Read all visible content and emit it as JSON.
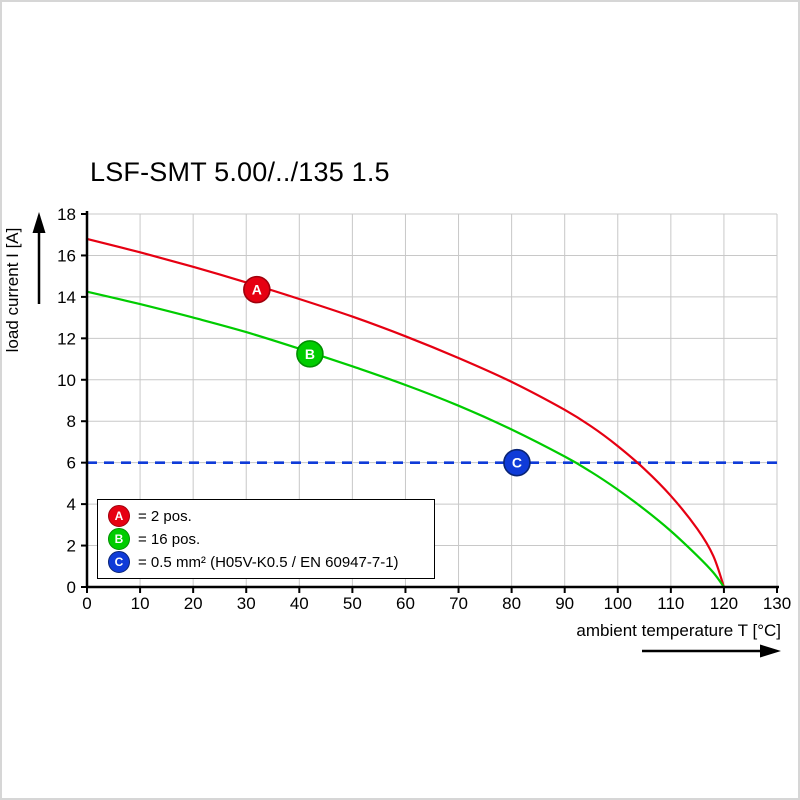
{
  "title": "LSF-SMT 5.00/../135 1.5",
  "chart_data": {
    "type": "line",
    "title": "LSF-SMT 5.00/../135 1.5",
    "xlabel": "ambient temperature T [°C]",
    "ylabel": "load current I [A]",
    "xlim": [
      0,
      130
    ],
    "ylim": [
      0,
      18
    ],
    "x_ticks": [
      0,
      10,
      20,
      30,
      40,
      50,
      60,
      70,
      80,
      90,
      100,
      110,
      120,
      130
    ],
    "y_ticks": [
      0,
      2,
      4,
      6,
      8,
      10,
      12,
      14,
      16,
      18
    ],
    "grid": true,
    "grid_color": "#c8c8c8",
    "legend_position": "lower-left",
    "series": [
      {
        "name": "A",
        "legend_label": "= 2 pos.",
        "color": "#e60012",
        "dark": "#a0000c",
        "x": [
          0,
          10,
          20,
          30,
          40,
          50,
          60,
          70,
          80,
          90,
          95,
          100,
          105,
          110,
          115,
          118,
          120
        ],
        "y": [
          16.8,
          16.15,
          15.45,
          14.7,
          13.9,
          13.05,
          12.1,
          11.05,
          9.9,
          8.55,
          7.75,
          6.8,
          5.7,
          4.4,
          2.8,
          1.5,
          0
        ],
        "marker": {
          "x": 32,
          "y": 14.35
        }
      },
      {
        "name": "B",
        "legend_label": "= 16 pos.",
        "color": "#00cc00",
        "dark": "#008f00",
        "x": [
          0,
          10,
          20,
          30,
          40,
          50,
          60,
          70,
          80,
          90,
          95,
          100,
          105,
          110,
          115,
          118,
          120
        ],
        "y": [
          14.25,
          13.65,
          13.0,
          12.3,
          11.5,
          10.65,
          9.75,
          8.75,
          7.6,
          6.3,
          5.55,
          4.7,
          3.75,
          2.7,
          1.5,
          0.7,
          0
        ],
        "marker": {
          "x": 42,
          "y": 11.25
        }
      },
      {
        "name": "C",
        "legend_label": "= 0.5 mm² (H05V-K0.5 / EN 60947-7-1)",
        "color": "#0f3bd8",
        "dark": "#092475",
        "style": "dashed",
        "const_y": 6,
        "marker": {
          "x": 81,
          "y": 6
        }
      }
    ]
  },
  "legend": {
    "items": [
      {
        "letter": "A",
        "label": "= 2 pos.",
        "color": "#e60012",
        "border": "#a0000c"
      },
      {
        "letter": "B",
        "label": "= 16 pos.",
        "color": "#00cc00",
        "border": "#008f00"
      },
      {
        "letter": "C",
        "label": "= 0.5 mm² (H05V-K0.5 / EN 60947-7-1)",
        "color": "#0f3bd8",
        "border": "#092475"
      }
    ]
  }
}
